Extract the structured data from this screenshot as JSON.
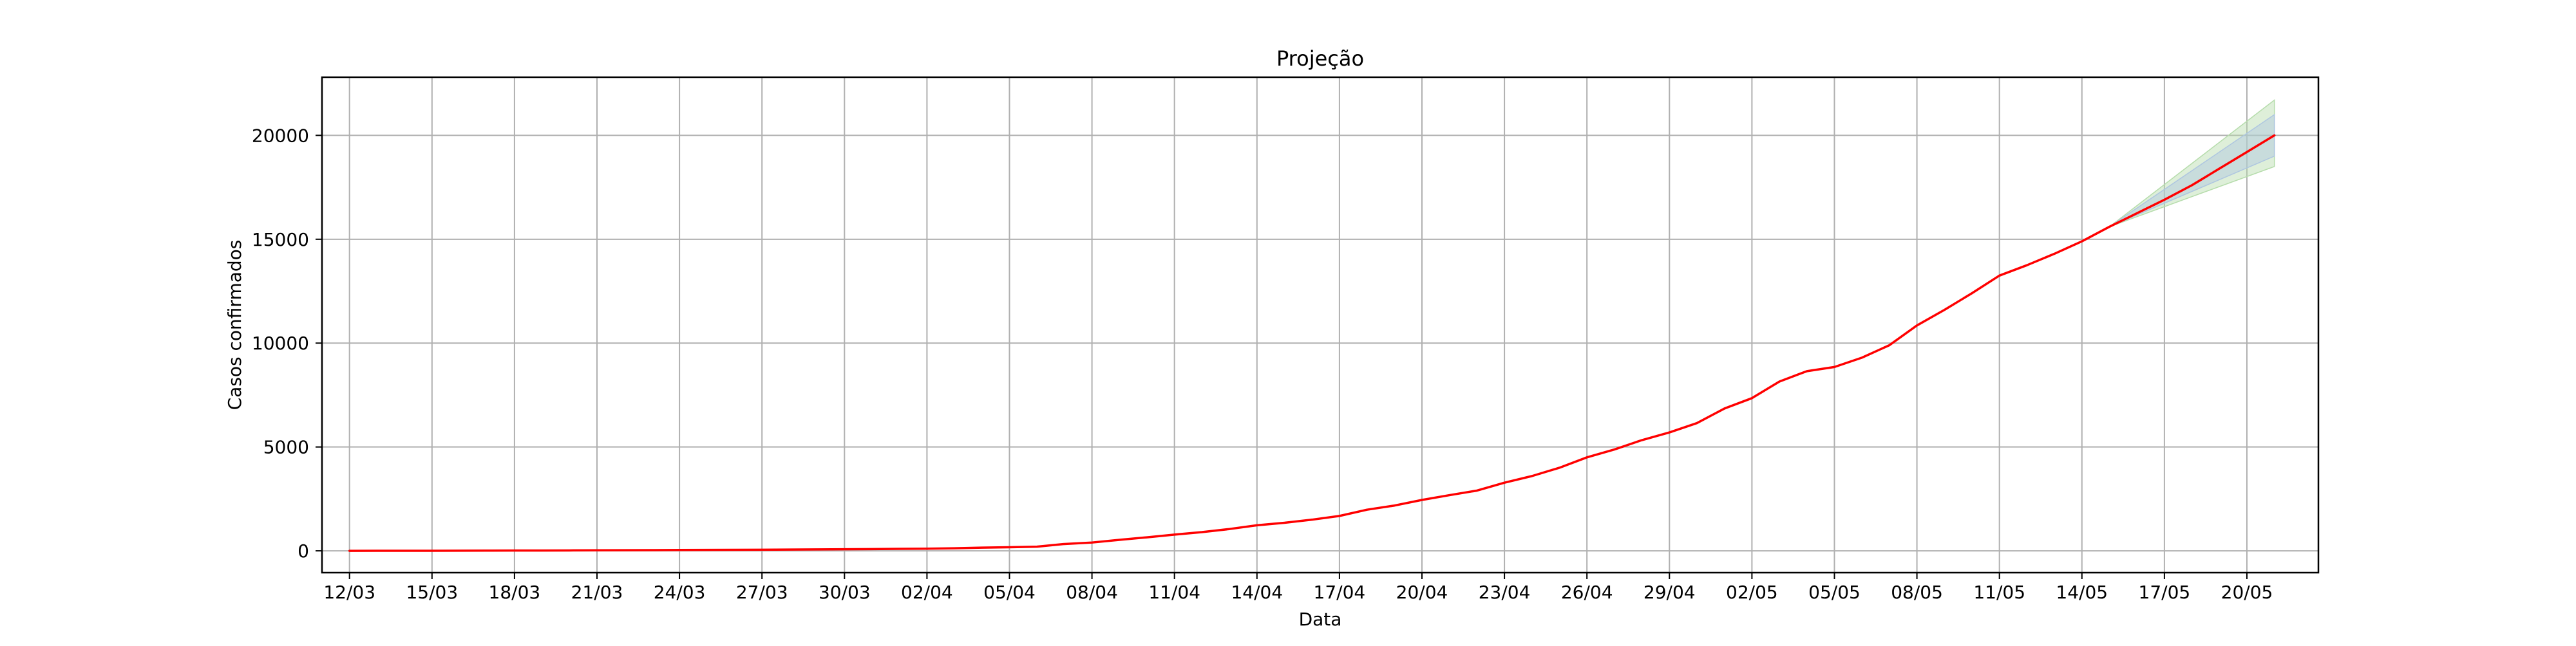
{
  "chart_data": {
    "type": "line",
    "title": "Projeção",
    "xlabel": "Data",
    "ylabel": "Casos confirmados",
    "grid": true,
    "legend": "none",
    "xlim": [
      -1.0,
      71.6
    ],
    "ylim": [
      -1050,
      22800
    ],
    "x_ticks": [
      {
        "x": 0,
        "label": "12/03"
      },
      {
        "x": 3,
        "label": "15/03"
      },
      {
        "x": 6,
        "label": "18/03"
      },
      {
        "x": 9,
        "label": "21/03"
      },
      {
        "x": 12,
        "label": "24/03"
      },
      {
        "x": 15,
        "label": "27/03"
      },
      {
        "x": 18,
        "label": "30/03"
      },
      {
        "x": 21,
        "label": "02/04"
      },
      {
        "x": 24,
        "label": "05/04"
      },
      {
        "x": 27,
        "label": "08/04"
      },
      {
        "x": 30,
        "label": "11/04"
      },
      {
        "x": 33,
        "label": "14/04"
      },
      {
        "x": 36,
        "label": "17/04"
      },
      {
        "x": 39,
        "label": "20/04"
      },
      {
        "x": 42,
        "label": "23/04"
      },
      {
        "x": 45,
        "label": "26/04"
      },
      {
        "x": 48,
        "label": "29/04"
      },
      {
        "x": 51,
        "label": "02/05"
      },
      {
        "x": 54,
        "label": "05/05"
      },
      {
        "x": 57,
        "label": "08/05"
      },
      {
        "x": 60,
        "label": "11/05"
      },
      {
        "x": 63,
        "label": "14/05"
      },
      {
        "x": 66,
        "label": "17/05"
      },
      {
        "x": 69,
        "label": "20/05"
      }
    ],
    "y_ticks": [
      0,
      5000,
      10000,
      15000,
      20000
    ],
    "series": [
      {
        "color": "#ff0000",
        "points": [
          [
            0,
            0
          ],
          [
            1,
            2
          ],
          [
            2,
            3
          ],
          [
            3,
            5
          ],
          [
            4,
            7
          ],
          [
            5,
            10
          ],
          [
            6,
            13
          ],
          [
            7,
            16
          ],
          [
            8,
            20
          ],
          [
            9,
            25
          ],
          [
            10,
            30
          ],
          [
            11,
            35
          ],
          [
            12,
            40
          ],
          [
            13,
            45
          ],
          [
            14,
            50
          ],
          [
            15,
            55
          ],
          [
            16,
            62
          ],
          [
            17,
            68
          ],
          [
            18,
            75
          ],
          [
            19,
            85
          ],
          [
            20,
            95
          ],
          [
            21,
            105
          ],
          [
            22,
            125
          ],
          [
            23,
            155
          ],
          [
            24,
            175
          ],
          [
            25,
            200
          ],
          [
            26,
            330
          ],
          [
            27,
            400
          ],
          [
            28,
            530
          ],
          [
            29,
            650
          ],
          [
            30,
            780
          ],
          [
            31,
            900
          ],
          [
            32,
            1050
          ],
          [
            33,
            1230
          ],
          [
            34,
            1350
          ],
          [
            35,
            1500
          ],
          [
            36,
            1680
          ],
          [
            37,
            1980
          ],
          [
            38,
            2180
          ],
          [
            39,
            2450
          ],
          [
            40,
            2680
          ],
          [
            41,
            2900
          ],
          [
            42,
            3280
          ],
          [
            43,
            3600
          ],
          [
            44,
            4000
          ],
          [
            45,
            4500
          ],
          [
            46,
            4880
          ],
          [
            47,
            5330
          ],
          [
            48,
            5700
          ],
          [
            49,
            6150
          ],
          [
            50,
            6850
          ],
          [
            51,
            7350
          ],
          [
            52,
            8150
          ],
          [
            53,
            8650
          ],
          [
            54,
            8850
          ],
          [
            55,
            9300
          ],
          [
            56,
            9900
          ],
          [
            57,
            10850
          ],
          [
            58,
            11600
          ],
          [
            59,
            12400
          ],
          [
            60,
            13250
          ],
          [
            61,
            13750
          ],
          [
            62,
            14300
          ],
          [
            63,
            14900
          ],
          [
            64,
            15600
          ],
          [
            65,
            16250
          ],
          [
            66,
            16900
          ],
          [
            67,
            17600
          ],
          [
            68,
            18400
          ],
          [
            69,
            19200
          ],
          [
            70,
            20000
          ]
        ]
      }
    ],
    "bands": [
      {
        "color": "#b5dcab",
        "x": [
          64,
          70
        ],
        "lower": [
          15600,
          18500
        ],
        "upper": [
          15600,
          21700
        ]
      },
      {
        "color": "#aec6e0",
        "x": [
          64,
          70
        ],
        "lower": [
          15600,
          19000
        ],
        "upper": [
          15600,
          21000
        ]
      }
    ]
  }
}
